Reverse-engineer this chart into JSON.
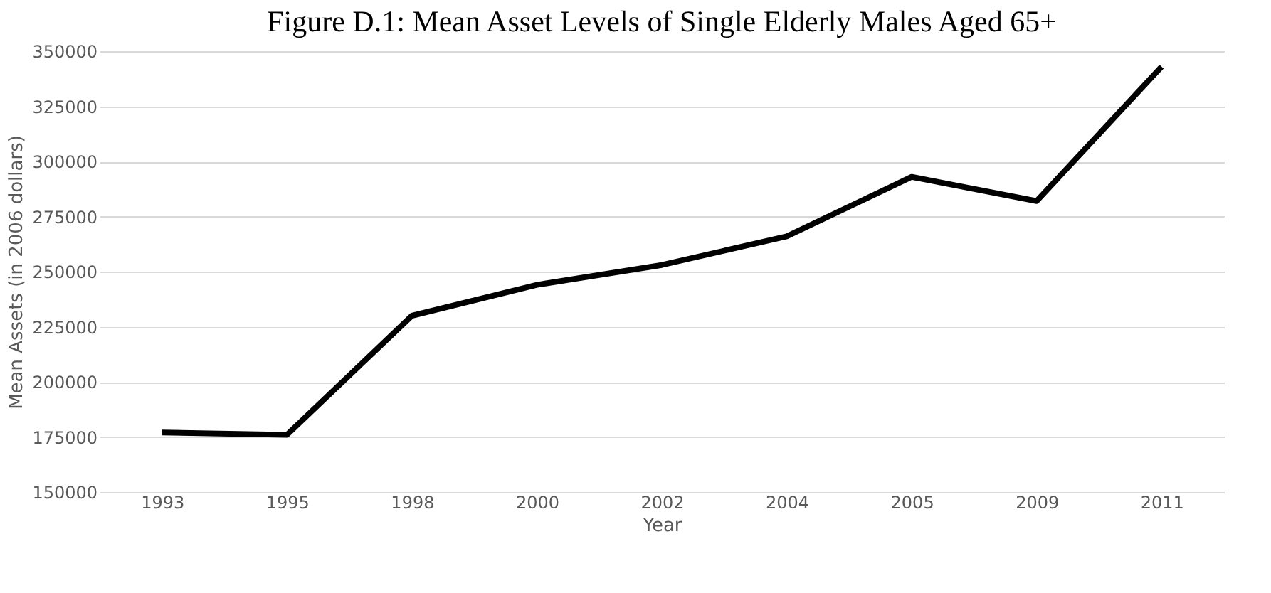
{
  "chart_data": {
    "type": "line",
    "title": "Figure D.1: Mean Asset Levels of Single Elderly Males Aged 65+",
    "xlabel": "Year",
    "ylabel": "Mean Assets (in 2006 dollars)",
    "categories": [
      "1993",
      "1995",
      "1998",
      "2000",
      "2002",
      "2004",
      "2005",
      "2009",
      "2011"
    ],
    "series": [
      {
        "color": "#000000",
        "values": [
          177000,
          176000,
          230000,
          244000,
          253000,
          266000,
          293000,
          282000,
          343000
        ]
      }
    ],
    "ylim": [
      150000,
      350000
    ],
    "yticks": [
      150000,
      175000,
      200000,
      225000,
      250000,
      275000,
      300000,
      325000,
      350000
    ],
    "grid": "y",
    "marker": "none",
    "line_style": "solid",
    "legend": false
  }
}
